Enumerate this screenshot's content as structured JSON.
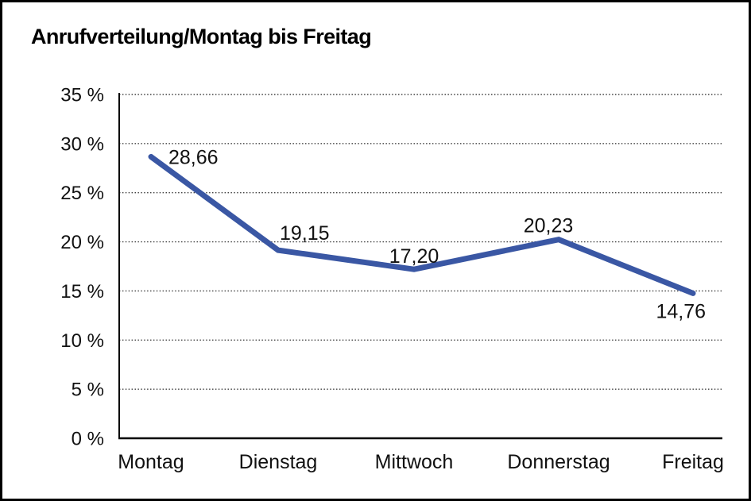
{
  "title": "Anrufverteilung/Montag bis Freitag",
  "chart_data": {
    "type": "line",
    "title": "Anrufverteilung/Montag bis Freitag",
    "categories": [
      "Montag",
      "Dienstag",
      "Mittwoch",
      "Donnerstag",
      "Freitag"
    ],
    "values": [
      28.66,
      19.15,
      17.2,
      20.23,
      14.76
    ],
    "value_labels": [
      "28,66",
      "19,15",
      "17,20",
      "20,23",
      "14,76"
    ],
    "xlabel": "",
    "ylabel": "",
    "ylim": [
      0,
      35
    ],
    "ytick_step": 5,
    "ytick_labels": [
      "0 %",
      "5 %",
      "10 %",
      "15 %",
      "20 %",
      "25 %",
      "30 %",
      "35 %"
    ],
    "grid": "horizontal-dotted",
    "legend": "none",
    "colors": {
      "line": "#3A57A4",
      "axis": "#000000",
      "gridline": "#404040",
      "text": "#111111"
    }
  }
}
